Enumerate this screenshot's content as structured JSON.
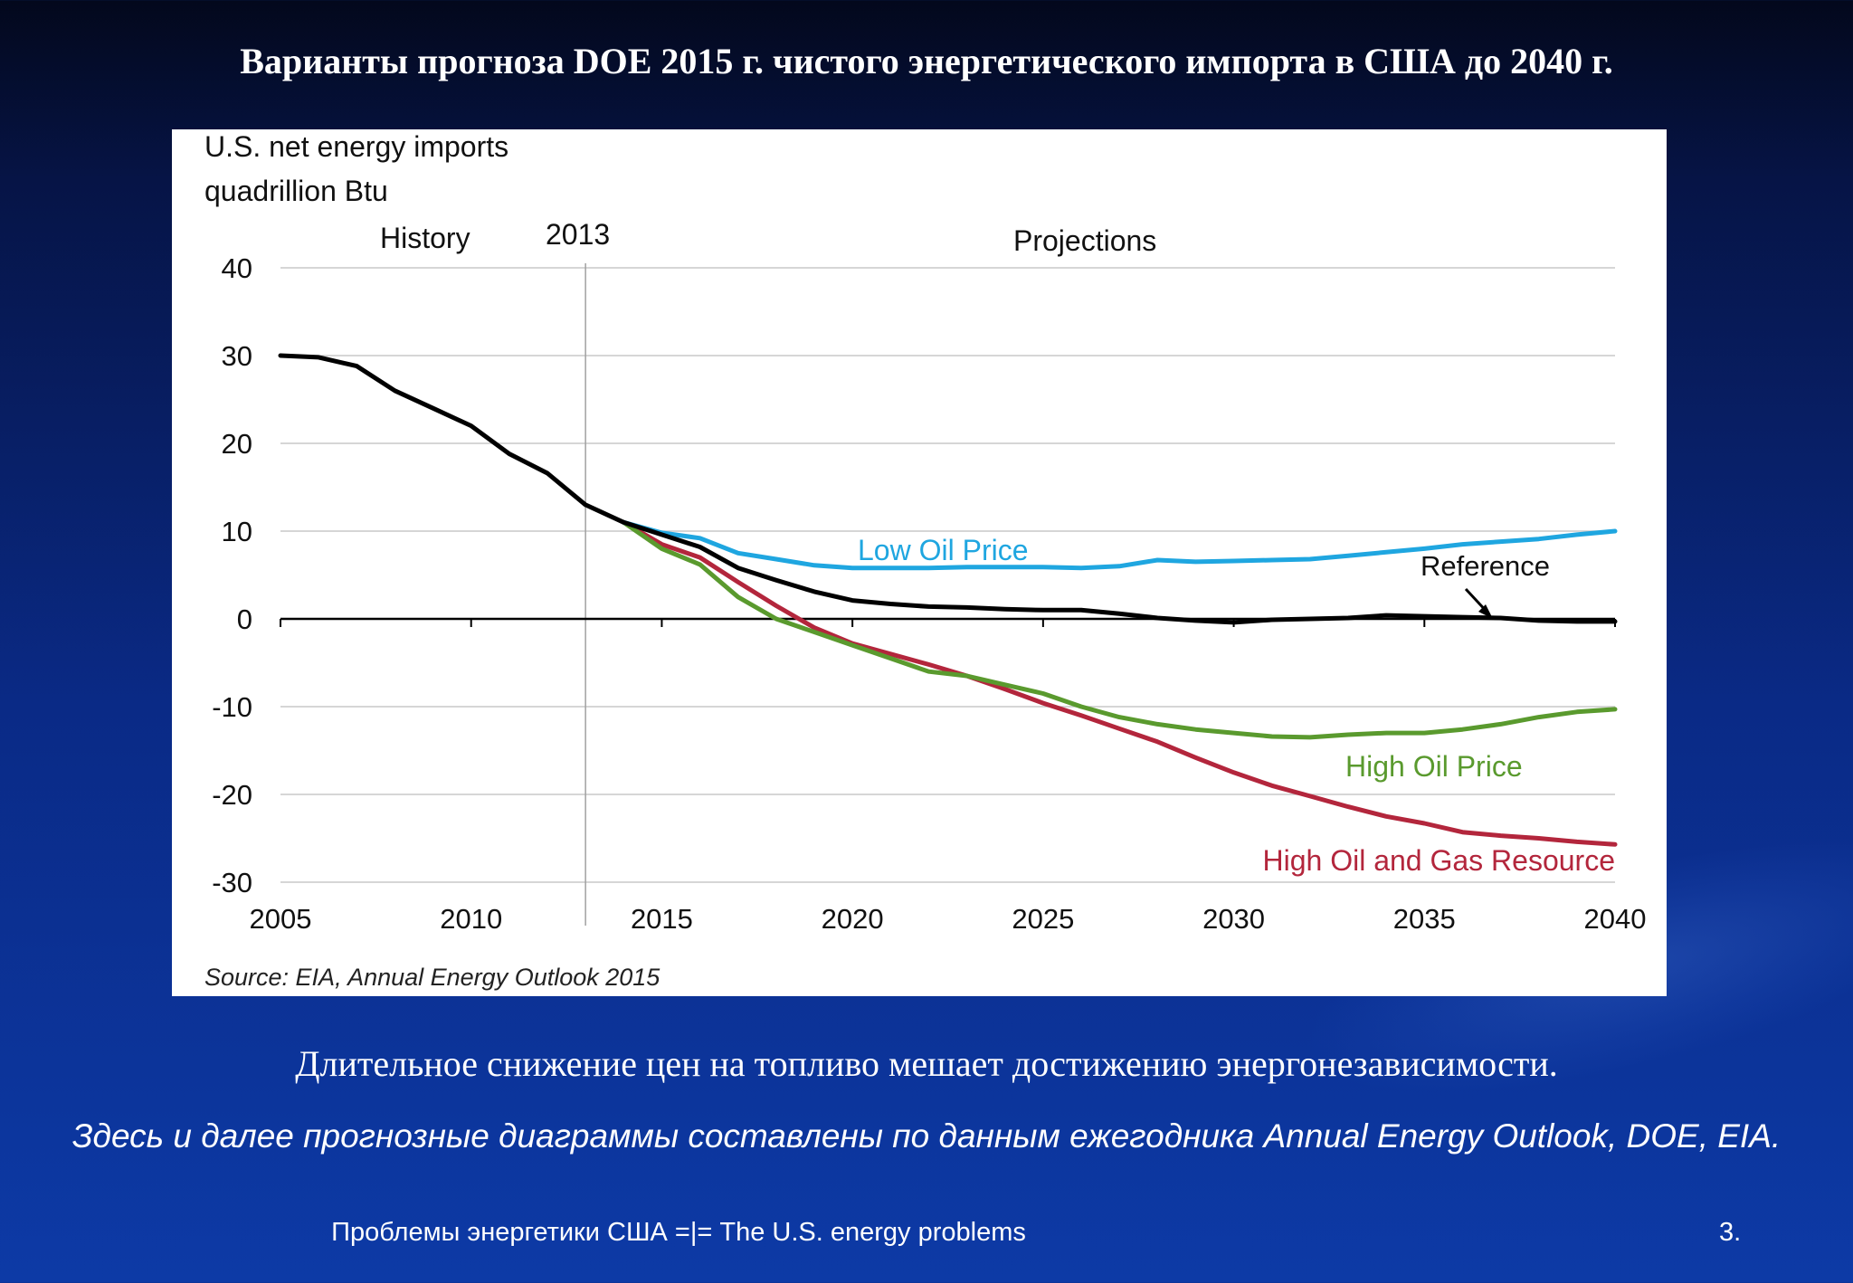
{
  "slide": {
    "title": "Варианты прогноза DOE 2015 г. чистого энергетического импорта в США до 2040 г.",
    "caption": "Длительное снижение цен на топливо мешает достижению энергонезависимости.",
    "note": "Здесь и далее прогнозные диаграммы составлены по данным ежегодника Annual Energy Outlook, DOE, EIA.",
    "footer": "Проблемы энергетики США =|= The U.S. energy problems",
    "page_number": "3."
  },
  "chart_data": {
    "type": "line",
    "title_line1": "U.S. net energy imports",
    "title_line2": "quadrillion Btu",
    "history_label": "History",
    "divider_label": "2013",
    "projections_label": "Projections",
    "source": "Source:  EIA, Annual Energy Outlook 2015",
    "divider_year": 2013,
    "xlim": [
      2005,
      2040
    ],
    "ylim": [
      -30,
      40
    ],
    "x_ticks": [
      2005,
      2010,
      2015,
      2020,
      2025,
      2030,
      2035,
      2040
    ],
    "y_ticks": [
      40,
      30,
      20,
      10,
      0,
      -10,
      -20,
      -30
    ],
    "grid": true,
    "colors": {
      "reference": "#000000",
      "low_oil": "#1fa6e0",
      "high_oil": "#5a9a2e",
      "high_resource": "#b3263c",
      "grid": "#c8c8c8"
    },
    "series": [
      {
        "name": "Reference",
        "key": "reference",
        "x": [
          2005,
          2006,
          2007,
          2008,
          2009,
          2010,
          2011,
          2012,
          2013,
          2014,
          2015,
          2016,
          2017,
          2018,
          2019,
          2020,
          2021,
          2022,
          2023,
          2024,
          2025,
          2026,
          2027,
          2028,
          2029,
          2030,
          2031,
          2032,
          2033,
          2034,
          2035,
          2036,
          2037,
          2038,
          2039,
          2040
        ],
        "values": [
          30.0,
          29.8,
          28.8,
          26.0,
          24.0,
          22.0,
          18.8,
          16.6,
          13.0,
          11.0,
          9.6,
          8.2,
          5.8,
          4.4,
          3.1,
          2.1,
          1.7,
          1.4,
          1.3,
          1.1,
          1.0,
          1.0,
          0.6,
          0.1,
          -0.2,
          -0.4,
          -0.1,
          0.0,
          0.1,
          0.4,
          0.3,
          0.2,
          0.1,
          -0.2,
          -0.3,
          -0.3
        ]
      },
      {
        "name": "Low Oil Price",
        "key": "low_oil",
        "x": [
          2014,
          2015,
          2016,
          2017,
          2018,
          2019,
          2020,
          2021,
          2022,
          2023,
          2024,
          2025,
          2026,
          2027,
          2028,
          2029,
          2030,
          2031,
          2032,
          2033,
          2034,
          2035,
          2036,
          2037,
          2038,
          2039,
          2040
        ],
        "values": [
          11.0,
          9.8,
          9.2,
          7.5,
          6.8,
          6.1,
          5.8,
          5.8,
          5.8,
          5.9,
          5.9,
          5.9,
          5.8,
          6.0,
          6.7,
          6.5,
          6.6,
          6.7,
          6.8,
          7.2,
          7.6,
          8.0,
          8.5,
          8.8,
          9.1,
          9.6,
          10.0
        ]
      },
      {
        "name": "High Oil Price",
        "key": "high_oil",
        "x": [
          2014,
          2015,
          2016,
          2017,
          2018,
          2019,
          2020,
          2021,
          2022,
          2023,
          2024,
          2025,
          2026,
          2027,
          2028,
          2029,
          2030,
          2031,
          2032,
          2033,
          2034,
          2035,
          2036,
          2037,
          2038,
          2039,
          2040
        ],
        "values": [
          11.0,
          8.0,
          6.2,
          2.5,
          0.0,
          -1.5,
          -3.0,
          -4.5,
          -6.0,
          -6.5,
          -7.5,
          -8.5,
          -10.0,
          -11.2,
          -12.0,
          -12.6,
          -13.0,
          -13.4,
          -13.5,
          -13.2,
          -13.0,
          -13.0,
          -12.6,
          -12.0,
          -11.2,
          -10.6,
          -10.3
        ]
      },
      {
        "name": "High Oil and Gas Resource",
        "key": "high_resource",
        "x": [
          2014,
          2015,
          2016,
          2017,
          2018,
          2019,
          2020,
          2021,
          2022,
          2023,
          2024,
          2025,
          2026,
          2027,
          2028,
          2029,
          2030,
          2031,
          2032,
          2033,
          2034,
          2035,
          2036,
          2037,
          2038,
          2039,
          2040
        ],
        "values": [
          11.0,
          8.5,
          7.0,
          4.2,
          1.5,
          -1.0,
          -2.8,
          -4.0,
          -5.2,
          -6.5,
          -8.0,
          -9.6,
          -11.0,
          -12.5,
          -14.0,
          -15.8,
          -17.5,
          -19.0,
          -20.2,
          -21.4,
          -22.5,
          -23.3,
          -24.3,
          -24.7,
          -25.0,
          -25.4,
          -25.7
        ]
      }
    ]
  }
}
